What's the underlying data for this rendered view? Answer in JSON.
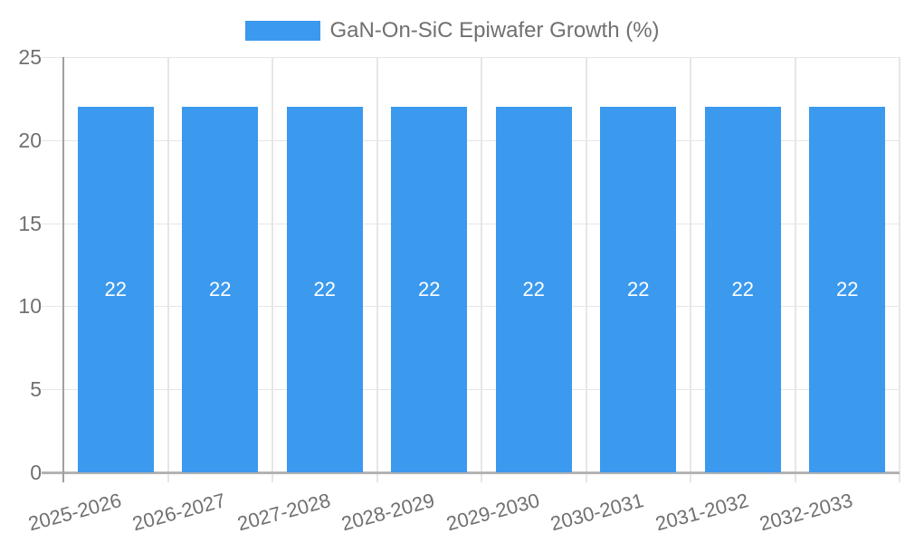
{
  "chart_data": {
    "type": "bar",
    "title": "GaN-On-SiC Epiwafer Growth (%)",
    "categories": [
      "2025-2026",
      "2026-2027",
      "2027-2028",
      "2028-2029",
      "2029-2030",
      "2030-2031",
      "2031-2032",
      "2032-2033"
    ],
    "values": [
      22,
      22,
      22,
      22,
      22,
      22,
      22,
      22
    ],
    "bar_labels": [
      "22",
      "22",
      "22",
      "22",
      "22",
      "22",
      "22",
      "22"
    ],
    "xlabel": "",
    "ylabel": "",
    "ylim": [
      0,
      25
    ],
    "yticks": [
      0,
      5,
      10,
      15,
      20,
      25
    ],
    "grid": true,
    "legend_position": "top",
    "colors": {
      "bar": "#3B99EE",
      "axis_text": "#707070",
      "gridline": "#e6e6e6",
      "y_axis_line": "#a0a0a0",
      "baseline": "#b3b3b3",
      "tick": "#d6d6d6",
      "bar_label": "#ffffff",
      "background": "#ffffff"
    }
  }
}
